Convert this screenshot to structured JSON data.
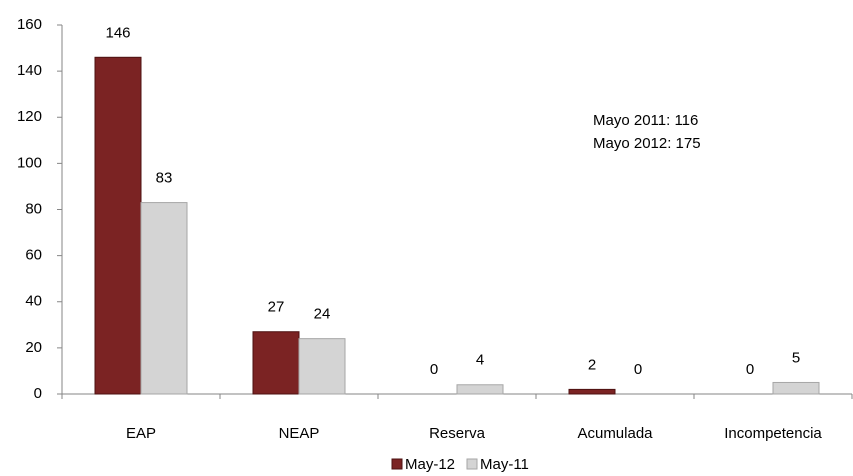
{
  "chart_data": {
    "type": "bar",
    "categories": [
      "EAP",
      "NEAP",
      "Reserva",
      "Acumulada",
      "Incompetencia"
    ],
    "series": [
      {
        "name": "May-12",
        "color": "#7b2323",
        "values": [
          146,
          27,
          0,
          2,
          0
        ]
      },
      {
        "name": "May-11",
        "color": "#d4d4d4",
        "values": [
          83,
          24,
          4,
          0,
          5
        ]
      }
    ],
    "ylim": [
      0,
      160
    ],
    "yticks": [
      0,
      20,
      40,
      60,
      80,
      100,
      120,
      140,
      160
    ],
    "annotations": [
      "Mayo 2011: 116",
      "Mayo 2012: 175"
    ],
    "legend": "bottom"
  }
}
